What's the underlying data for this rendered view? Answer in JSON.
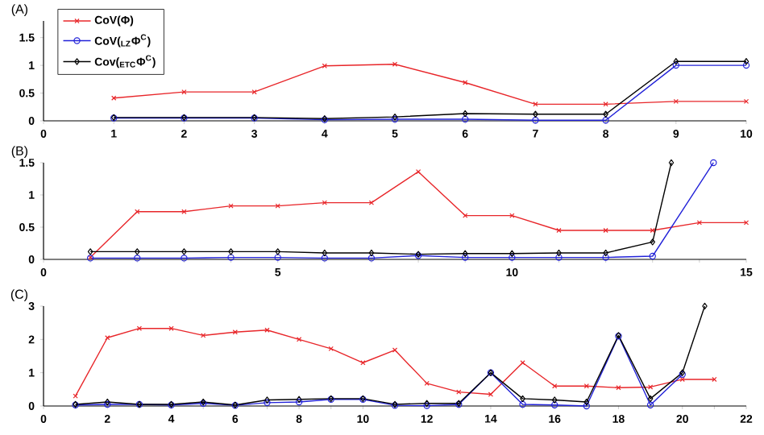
{
  "chart_data": [
    {
      "type": "line",
      "title": "(A)",
      "xlim": [
        0,
        10
      ],
      "xticks": [
        0,
        1,
        2,
        3,
        4,
        5,
        6,
        7,
        8,
        9,
        10
      ],
      "ylim": [
        0,
        1.8
      ],
      "yticks": [
        0,
        0.5,
        1,
        1.5
      ],
      "legend": "top left",
      "grid": false,
      "x": [
        1,
        2,
        3,
        4,
        5,
        6,
        7,
        8,
        9,
        10
      ],
      "series": [
        {
          "name": "CoV(Φ)",
          "color": "#e8262a",
          "marker": "cross",
          "values": [
            0.41,
            0.52,
            0.52,
            0.99,
            1.02,
            0.69,
            0.3,
            0.3,
            0.35,
            0.35
          ]
        },
        {
          "name": "CoV($_{LZ}$Φ$^{C}$)",
          "color": "#2222d8",
          "marker": "circle",
          "values": [
            0.05,
            0.05,
            0.05,
            0.02,
            0.03,
            0.03,
            0.01,
            0.01,
            1.0,
            1.0
          ]
        },
        {
          "name": "Cov($_{ETC}$Φ$^{C}$)",
          "color": "#000000",
          "marker": "diamond",
          "values": [
            0.06,
            0.06,
            0.06,
            0.04,
            0.07,
            0.13,
            0.12,
            0.12,
            1.07,
            1.07
          ]
        }
      ]
    },
    {
      "type": "line",
      "title": "(B)",
      "xlim": [
        0,
        15
      ],
      "xticks": [
        0,
        {
          "value": 1,
          "label": null
        },
        {
          "value": 2,
          "label": null
        },
        {
          "value": 3,
          "label": null
        },
        {
          "value": 4,
          "label": null
        },
        5,
        {
          "value": 6,
          "label": null
        },
        {
          "value": 7,
          "label": null
        },
        {
          "value": 8,
          "label": null
        },
        {
          "value": 9,
          "label": null
        },
        10,
        {
          "value": 11,
          "label": null
        },
        {
          "value": 12,
          "label": null
        },
        {
          "value": 13,
          "label": null
        },
        {
          "value": 14,
          "label": null
        },
        15
      ],
      "ylim": [
        0,
        1.5
      ],
      "yticks": [
        0,
        0.5,
        1,
        1.5
      ],
      "grid": false,
      "series": [
        {
          "color": "#e8262a",
          "marker": "cross",
          "x": [
            1,
            2,
            3,
            4,
            5,
            6,
            7,
            8,
            9,
            10,
            11,
            12,
            13,
            14,
            15
          ],
          "values": [
            0.03,
            0.74,
            0.74,
            0.83,
            0.83,
            0.88,
            0.88,
            1.36,
            0.68,
            0.68,
            0.45,
            0.45,
            0.45,
            0.57,
            0.57
          ]
        },
        {
          "color": "#2222d8",
          "marker": "circle",
          "x": [
            1,
            2,
            3,
            4,
            5,
            6,
            7,
            8,
            9,
            10,
            11,
            12,
            13,
            14.3
          ],
          "values": [
            0.02,
            0.02,
            0.02,
            0.03,
            0.03,
            0.02,
            0.02,
            0.06,
            0.03,
            0.03,
            0.03,
            0.03,
            0.05,
            1.5
          ]
        },
        {
          "color": "#000000",
          "marker": "diamond",
          "x": [
            1,
            2,
            3,
            4,
            5,
            6,
            7,
            8,
            9,
            10,
            11,
            12,
            13,
            13.4
          ],
          "values": [
            0.12,
            0.12,
            0.12,
            0.12,
            0.12,
            0.1,
            0.1,
            0.08,
            0.09,
            0.09,
            0.1,
            0.1,
            0.27,
            1.5
          ]
        }
      ]
    },
    {
      "type": "line",
      "title": "(C)",
      "xlim": [
        0,
        22
      ],
      "xticks": [
        0,
        {
          "value": 1,
          "label": null
        },
        2,
        {
          "value": 3,
          "label": null
        },
        4,
        {
          "value": 5,
          "label": null
        },
        6,
        {
          "value": 7,
          "label": null
        },
        8,
        {
          "value": 9,
          "label": null
        },
        10,
        {
          "value": 11,
          "label": null
        },
        12,
        {
          "value": 13,
          "label": null
        },
        14,
        {
          "value": 15,
          "label": null
        },
        16,
        {
          "value": 17,
          "label": null
        },
        18,
        {
          "value": 19,
          "label": null
        },
        20,
        {
          "value": 21,
          "label": null
        },
        22
      ],
      "ylim": [
        0,
        3
      ],
      "yticks": [
        0,
        1,
        2,
        3
      ],
      "grid": false,
      "series": [
        {
          "color": "#e8262a",
          "marker": "cross",
          "x": [
            1,
            2,
            3,
            4,
            5,
            6,
            7,
            8,
            9,
            10,
            11,
            12,
            13,
            14,
            15,
            16,
            17,
            18,
            19,
            20,
            21
          ],
          "values": [
            0.3,
            2.05,
            2.33,
            2.33,
            2.12,
            2.22,
            2.28,
            2.0,
            1.72,
            1.3,
            1.68,
            0.68,
            0.42,
            0.35,
            1.3,
            0.6,
            0.6,
            0.55,
            0.57,
            0.8,
            0.8
          ]
        },
        {
          "color": "#2222d8",
          "marker": "circle",
          "x": [
            1,
            2,
            3,
            4,
            5,
            6,
            7,
            8,
            9,
            10,
            11,
            12,
            13,
            14,
            15,
            16,
            17,
            18,
            19,
            20
          ],
          "values": [
            0.03,
            0.05,
            0.05,
            0.03,
            0.08,
            0.02,
            0.1,
            0.12,
            0.2,
            0.2,
            0.02,
            0.01,
            0.05,
            1.0,
            0.05,
            0.03,
            0.0,
            2.1,
            0.03,
            0.95
          ]
        },
        {
          "color": "#000000",
          "marker": "diamond",
          "x": [
            1,
            2,
            3,
            4,
            5,
            6,
            7,
            8,
            9,
            10,
            11,
            12,
            13,
            14,
            15,
            16,
            17,
            18,
            19,
            20,
            20.7
          ],
          "values": [
            0.05,
            0.12,
            0.05,
            0.05,
            0.12,
            0.03,
            0.18,
            0.2,
            0.22,
            0.22,
            0.05,
            0.08,
            0.08,
            1.0,
            0.22,
            0.18,
            0.12,
            2.12,
            0.22,
            1.0,
            3.0
          ]
        }
      ]
    }
  ]
}
